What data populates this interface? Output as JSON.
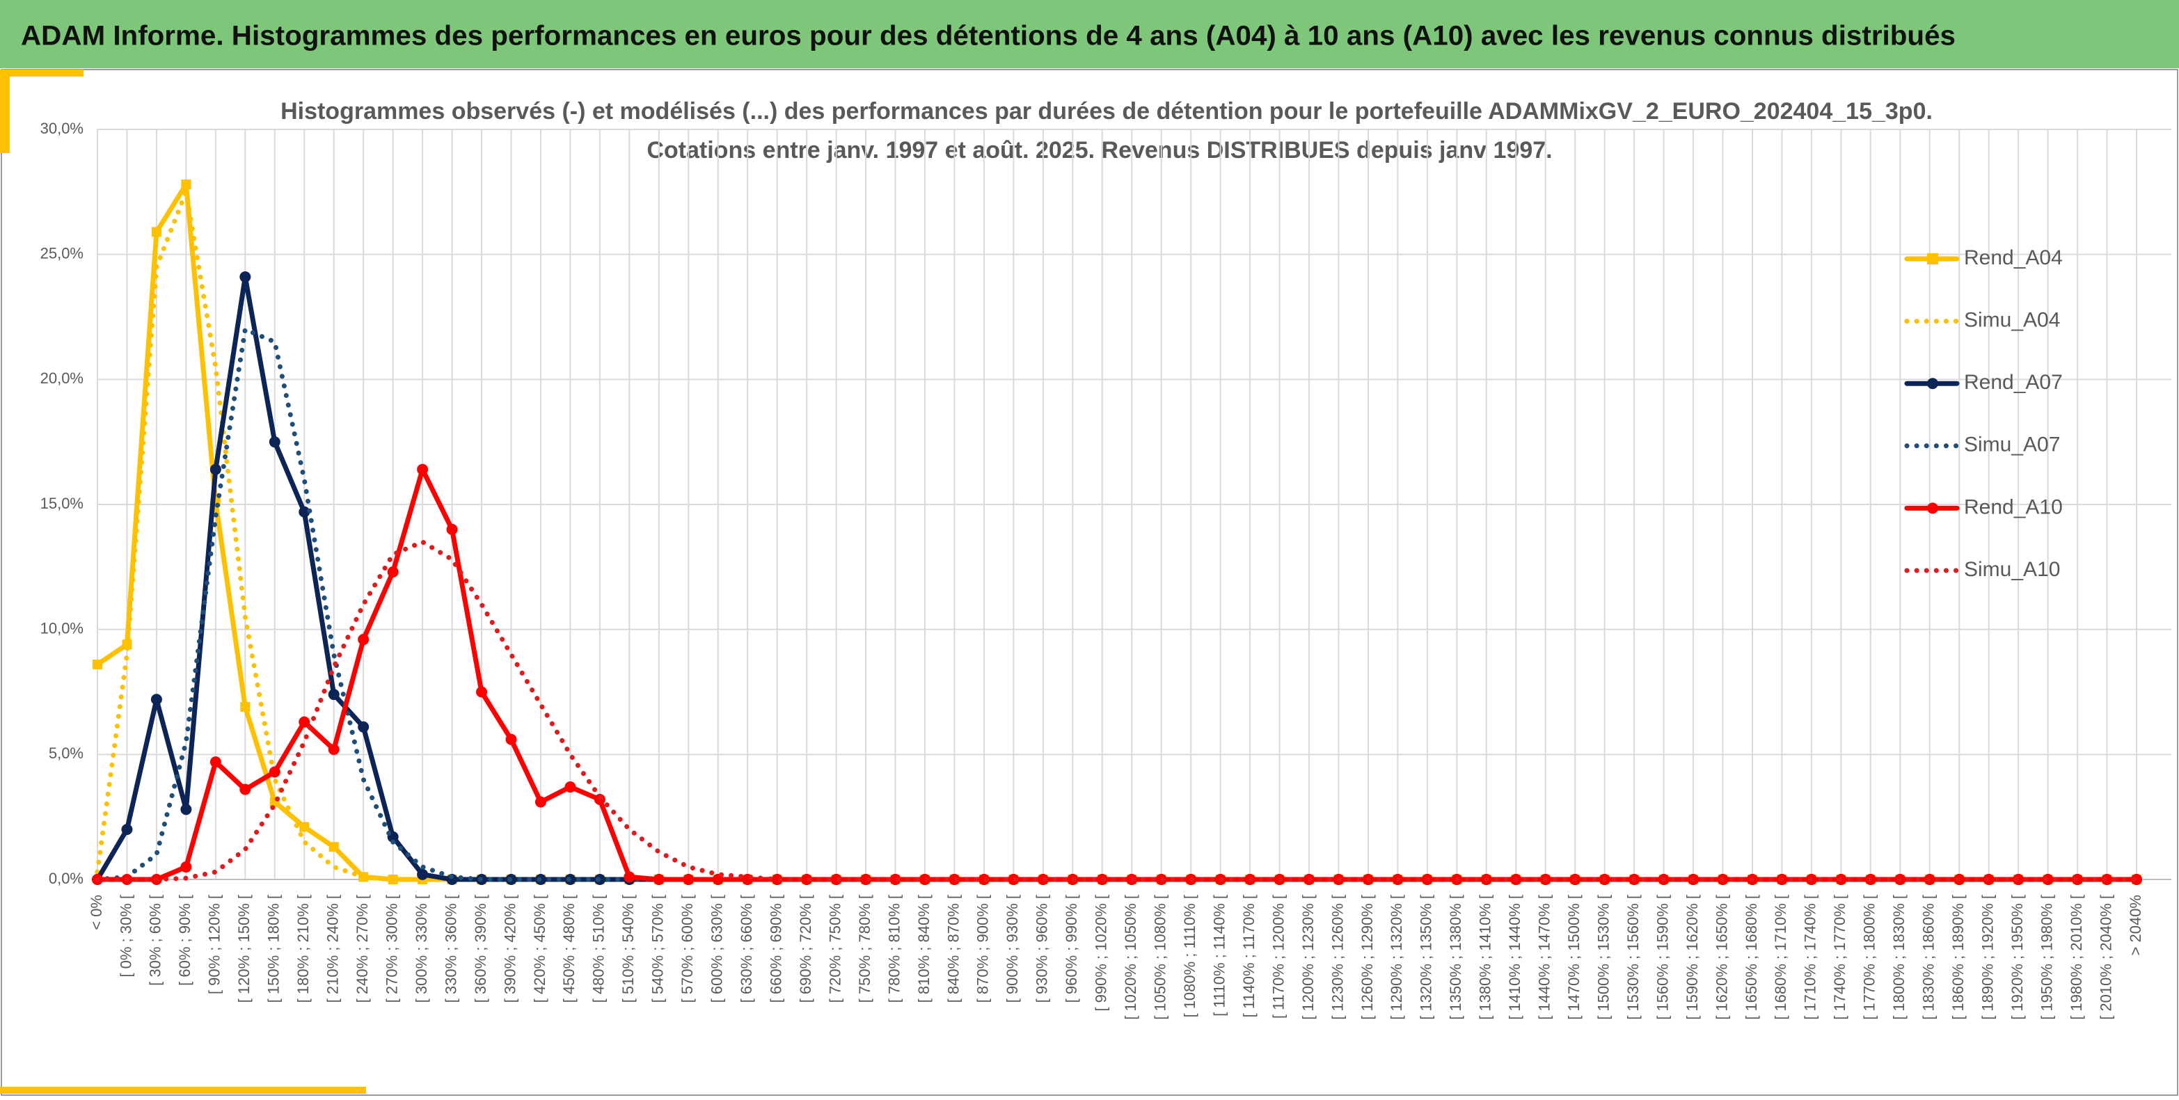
{
  "header": {
    "title": "ADAM Informe. Histogrammes des performances en euros pour des détentions de 4 ans (A04) à 10 ans (A10) avec les revenus connus distribués"
  },
  "chart_data": {
    "type": "line",
    "title": "Histogrammes observés (-) et modélisés (...) des performances par durées de détention pour le portefeuille ADAMMixGV_2_EURO_202404_15_3p0.",
    "subtitle": "Cotations entre janv. 1997 et août. 2025. Revenus DISTRIBUES depuis janv 1997.",
    "categories": [
      "< 0%",
      "[ 0% ; 30% [",
      "[ 30% ; 60% [",
      "[ 60% ; 90% [",
      "[ 90% ; 120% [",
      "[ 120% ; 150% [",
      "[ 150% ; 180% [",
      "[ 180% ; 210% [",
      "[ 210% ; 240% [",
      "[ 240% ; 270% [",
      "[ 270% ; 300% [",
      "[ 300% ; 330% [",
      "[ 330% ; 360% [",
      "[ 360% ; 390% [",
      "[ 390% ; 420% [",
      "[ 420% ; 450% [",
      "[ 450% ; 480% [",
      "[ 480% ; 510% [",
      "[ 510% ; 540% [",
      "[ 540% ; 570% [",
      "[ 570% ; 600% [",
      "[ 600% ; 630% [",
      "[ 630% ; 660% [",
      "[ 660% ; 690% [",
      "[ 690% ; 720% [",
      "[ 720% ; 750% [",
      "[ 750% ; 780% [",
      "[ 780% ; 810% [",
      "[ 810% ; 840% [",
      "[ 840% ; 870% [",
      "[ 870% ; 900% [",
      "[ 900% ; 930% [",
      "[ 930% ; 960% [",
      "[ 960% ; 990% [",
      "[ 990% ; 1020% [",
      "[ 1020% ; 1050% [",
      "[ 1050% ; 1080% [",
      "[ 1080% ; 1110% [",
      "[ 1110% ; 1140% [",
      "[ 1140% ; 1170% [",
      "[ 1170% ; 1200% [",
      "[ 1200% ; 1230% [",
      "[ 1230% ; 1260% [",
      "[ 1260% ; 1290% [",
      "[ 1290% ; 1320% [",
      "[ 1320% ; 1350% [",
      "[ 1350% ; 1380% [",
      "[ 1380% ; 1410% [",
      "[ 1410% ; 1440% [",
      "[ 1440% ; 1470% [",
      "[ 1470% ; 1500% [",
      "[ 1500% ; 1530% [",
      "[ 1530% ; 1560% [",
      "[ 1560% ; 1590% [",
      "[ 1590% ; 1620% [",
      "[ 1620% ; 1650% [",
      "[ 1650% ; 1680% [",
      "[ 1680% ; 1710% [",
      "[ 1710% ; 1740% [",
      "[ 1740% ; 1770% [",
      "[ 1770% ; 1800% [",
      "[ 1800% ; 1830% [",
      "[ 1830% ; 1860% [",
      "[ 1860% ; 1890% [",
      "[ 1890% ; 1920% [",
      "[ 1920% ; 1950% [",
      "[ 1950% ; 1980% [",
      "[ 1980% ; 2010% [",
      "[ 2010% ; 2040% [",
      "> 2040%"
    ],
    "series": [
      {
        "name": "Rend_A04",
        "color": "#ffc000",
        "line_style": "solid",
        "marker": "square",
        "values": [
          8.6,
          9.4,
          25.9,
          27.8,
          15.1,
          6.9,
          3.1,
          2.1,
          1.3,
          0.1,
          0,
          0,
          0,
          0,
          0,
          0,
          0,
          0,
          0,
          0,
          0,
          0,
          0,
          0,
          0,
          0,
          0,
          0,
          0,
          0,
          0,
          0,
          0,
          0,
          0,
          0,
          0,
          0,
          0,
          0,
          0,
          0,
          0,
          0,
          0,
          0,
          0,
          0,
          0,
          0,
          0,
          0,
          0,
          0,
          0,
          0,
          0,
          0,
          0,
          0,
          0,
          0,
          0,
          0,
          0,
          0,
          0,
          0,
          0,
          0
        ]
      },
      {
        "name": "Simu_A04",
        "color": "#ffc000",
        "line_style": "dotted",
        "marker": "none",
        "values": [
          0.3,
          9.0,
          24.5,
          27.5,
          20.5,
          10.5,
          4.0,
          1.5,
          0.5,
          0.1,
          0,
          0,
          0,
          0,
          0,
          0,
          0,
          0,
          0,
          0,
          0,
          0,
          0,
          0,
          0,
          0,
          0,
          0,
          0,
          0,
          0,
          0,
          0,
          0,
          0,
          0,
          0,
          0,
          0,
          0,
          0,
          0,
          0,
          0,
          0,
          0,
          0,
          0,
          0,
          0,
          0,
          0,
          0,
          0,
          0,
          0,
          0,
          0,
          0,
          0,
          0,
          0,
          0,
          0,
          0,
          0,
          0,
          0,
          0,
          0
        ]
      },
      {
        "name": "Rend_A07",
        "color": "#0d2456",
        "line_style": "solid",
        "marker": "circle",
        "values": [
          0,
          2.0,
          7.2,
          2.8,
          16.4,
          24.1,
          17.5,
          14.7,
          7.4,
          6.1,
          1.7,
          0.2,
          0,
          0,
          0,
          0,
          0,
          0,
          0,
          0,
          0,
          0,
          0,
          0,
          0,
          0,
          0,
          0,
          0,
          0,
          0,
          0,
          0,
          0,
          0,
          0,
          0,
          0,
          0,
          0,
          0,
          0,
          0,
          0,
          0,
          0,
          0,
          0,
          0,
          0,
          0,
          0,
          0,
          0,
          0,
          0,
          0,
          0,
          0,
          0,
          0,
          0,
          0,
          0,
          0,
          0,
          0,
          0,
          0,
          0
        ]
      },
      {
        "name": "Simu_A07",
        "color": "#1f4e79",
        "line_style": "dotted",
        "marker": "none",
        "values": [
          0,
          0.1,
          1.0,
          5.5,
          14.5,
          22.0,
          21.5,
          16.0,
          9.0,
          4.0,
          1.5,
          0.5,
          0.1,
          0,
          0,
          0,
          0,
          0,
          0,
          0,
          0,
          0,
          0,
          0,
          0,
          0,
          0,
          0,
          0,
          0,
          0,
          0,
          0,
          0,
          0,
          0,
          0,
          0,
          0,
          0,
          0,
          0,
          0,
          0,
          0,
          0,
          0,
          0,
          0,
          0,
          0,
          0,
          0,
          0,
          0,
          0,
          0,
          0,
          0,
          0,
          0,
          0,
          0,
          0,
          0,
          0,
          0,
          0,
          0,
          0
        ]
      },
      {
        "name": "Rend_A10",
        "color": "#ff0000",
        "line_style": "solid",
        "marker": "circle",
        "values": [
          0,
          0,
          0,
          0.5,
          4.7,
          3.6,
          4.3,
          6.3,
          5.2,
          9.6,
          12.3,
          16.4,
          14.0,
          7.5,
          5.6,
          3.1,
          3.7,
          3.2,
          0.1,
          0,
          0,
          0,
          0,
          0,
          0,
          0,
          0,
          0,
          0,
          0,
          0,
          0,
          0,
          0,
          0,
          0,
          0,
          0,
          0,
          0,
          0,
          0,
          0,
          0,
          0,
          0,
          0,
          0,
          0,
          0,
          0,
          0,
          0,
          0,
          0,
          0,
          0,
          0,
          0,
          0,
          0,
          0,
          0,
          0,
          0,
          0,
          0,
          0,
          0,
          0
        ]
      },
      {
        "name": "Simu_A10",
        "color": "#e31a1c",
        "line_style": "dotted",
        "marker": "none",
        "values": [
          0,
          0,
          0,
          0.05,
          0.3,
          1.2,
          3.0,
          5.5,
          8.5,
          11.0,
          13.0,
          13.5,
          12.8,
          11.0,
          9.0,
          7.0,
          5.0,
          3.3,
          2.0,
          1.1,
          0.5,
          0.2,
          0.1,
          0,
          0,
          0,
          0,
          0,
          0,
          0,
          0,
          0,
          0,
          0,
          0,
          0,
          0,
          0,
          0,
          0,
          0,
          0,
          0,
          0,
          0,
          0,
          0,
          0,
          0,
          0,
          0,
          0,
          0,
          0,
          0,
          0,
          0,
          0,
          0,
          0,
          0,
          0,
          0,
          0,
          0,
          0,
          0,
          0,
          0,
          0
        ]
      }
    ],
    "ylim": [
      0,
      30
    ],
    "yticks": [
      {
        "value": 0,
        "label": "0,0%"
      },
      {
        "value": 5,
        "label": "5,0%"
      },
      {
        "value": 10,
        "label": "10,0%"
      },
      {
        "value": 15,
        "label": "15,0%"
      },
      {
        "value": 20,
        "label": "20,0%"
      },
      {
        "value": 25,
        "label": "25,0%"
      },
      {
        "value": 30,
        "label": "30,0%"
      }
    ],
    "grid": true,
    "legend": "right"
  }
}
